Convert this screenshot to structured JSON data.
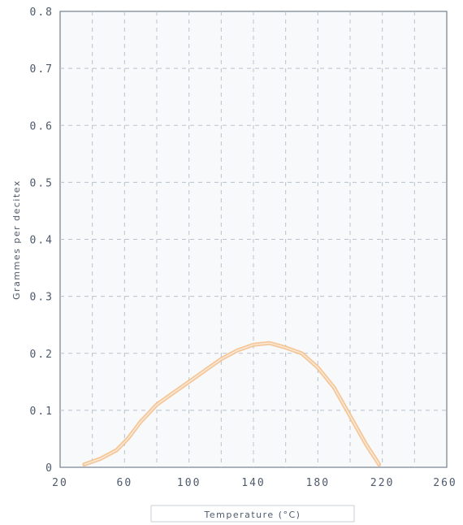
{
  "chart_data": {
    "type": "line",
    "title": "",
    "xlabel": "Temperature (°C)",
    "ylabel": "Grammes per decitex",
    "xlim": [
      20,
      260
    ],
    "ylim": [
      0,
      0.8
    ],
    "x_ticks": [
      20,
      60,
      100,
      140,
      180,
      220,
      260
    ],
    "y_ticks": [
      0,
      0.1,
      0.2,
      0.3,
      0.4,
      0.5,
      0.6,
      0.7,
      0.8
    ],
    "x_tick_labels": [
      "20",
      "60",
      "100",
      "140",
      "180",
      "220",
      "260"
    ],
    "y_tick_labels": [
      "0",
      "0.1",
      "0.2",
      "0.3",
      "0.4",
      "0.5",
      "0.6",
      "0.7",
      "0.8"
    ],
    "grid": true,
    "series": [
      {
        "color": "#f5c08a",
        "x": [
          35,
          45,
          55,
          62,
          70,
          80,
          90,
          100,
          110,
          120,
          130,
          140,
          150,
          160,
          170,
          180,
          190,
          200,
          210,
          218
        ],
        "y": [
          0.005,
          0.015,
          0.03,
          0.05,
          0.08,
          0.11,
          0.13,
          0.15,
          0.17,
          0.19,
          0.205,
          0.215,
          0.218,
          0.21,
          0.2,
          0.175,
          0.14,
          0.09,
          0.04,
          0.005
        ]
      }
    ]
  }
}
